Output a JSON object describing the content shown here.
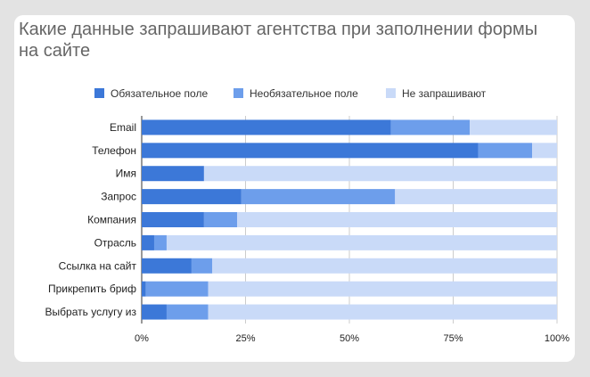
{
  "chart_data": {
    "type": "bar",
    "orientation": "horizontal",
    "stacked": "percent",
    "title": "Какие данные запрашивают агентства при заполнении формы на сайте",
    "xlabel": "",
    "ylabel": "",
    "xlim": [
      0,
      100
    ],
    "x_ticks": [
      "0%",
      "25%",
      "50%",
      "75%",
      "100%"
    ],
    "legend_position": "top",
    "grid": "vertical",
    "categories": [
      "Email",
      "Телефон",
      "Имя",
      "Запрос",
      "Компания",
      "Отрасль",
      "Ссылка на сайт",
      "Прикрепить бриф",
      "Выбрать услугу из"
    ],
    "series": [
      {
        "name": "Обязательное поле",
        "color": "#3c78d8",
        "values": [
          60,
          81,
          15,
          24,
          15,
          3,
          12,
          1,
          6
        ]
      },
      {
        "name": "Необязательное поле",
        "color": "#6d9eeb",
        "values": [
          19,
          13,
          0,
          37,
          8,
          3,
          5,
          15,
          10
        ]
      },
      {
        "name": "Не запрашивают",
        "color": "#c9daf8",
        "values": [
          21,
          6,
          85,
          39,
          77,
          94,
          83,
          84,
          84
        ]
      }
    ]
  }
}
